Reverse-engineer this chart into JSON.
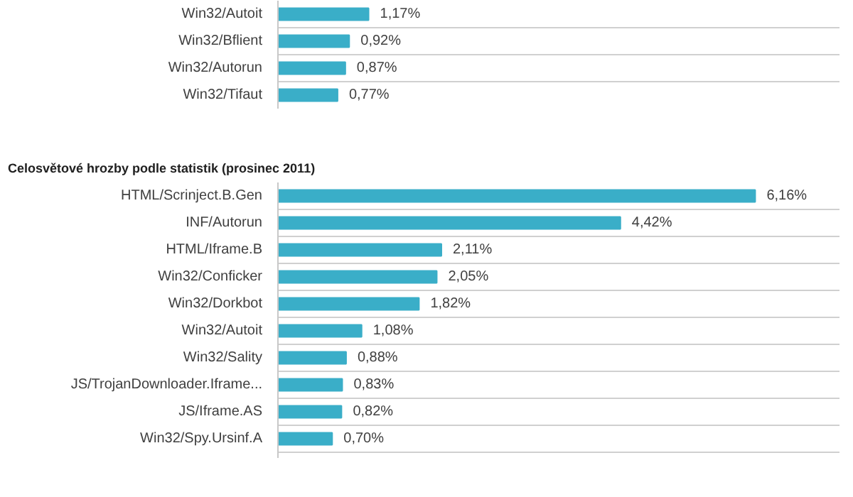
{
  "chart_data": [
    {
      "type": "bar",
      "orientation": "horizontal",
      "categories": [
        "Win32/Autoit",
        "Win32/Bflient",
        "Win32/Autorun",
        "Win32/Tifaut"
      ],
      "values": [
        1.17,
        0.92,
        0.87,
        0.77
      ],
      "value_labels": [
        "1,17%",
        "0,92%",
        "0,87%",
        "0,77%"
      ],
      "color": "#3aaec8",
      "grid": "y"
    },
    {
      "type": "bar",
      "orientation": "horizontal",
      "title": "Celosvětové hrozby podle statistik (prosinec 2011)",
      "categories": [
        "HTML/Scrinject.B.Gen",
        "INF/Autorun",
        "HTML/Iframe.B",
        "Win32/Conficker",
        "Win32/Dorkbot",
        "Win32/Autoit",
        "Win32/Sality",
        "JS/TrojanDownloader.Iframe...",
        "JS/Iframe.AS",
        "Win32/Spy.Ursinf.A"
      ],
      "values": [
        6.16,
        4.42,
        2.11,
        2.05,
        1.82,
        1.08,
        0.88,
        0.83,
        0.82,
        0.7
      ],
      "value_labels": [
        "6,16%",
        "4,42%",
        "2,11%",
        "2,05%",
        "1,82%",
        "1,08%",
        "0,88%",
        "0,83%",
        "0,82%",
        "0,70%"
      ],
      "color": "#3aaec8",
      "grid": "y"
    }
  ]
}
